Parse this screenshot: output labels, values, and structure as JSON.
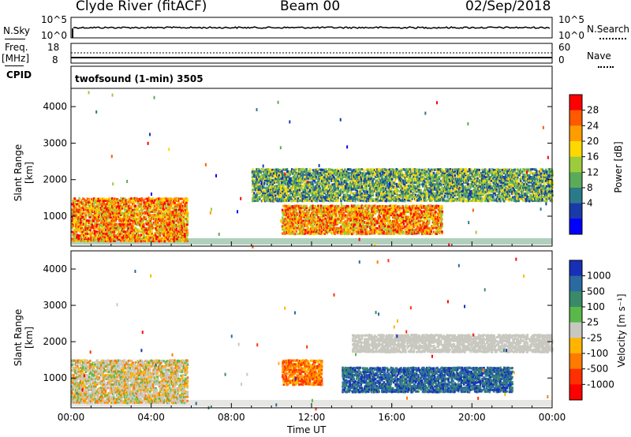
{
  "header": {
    "title": "Clyde River (fitACF)",
    "beam": "Beam 00",
    "date": "02/Sep/2018"
  },
  "strip1": {
    "left_label": "N.Sky",
    "right_label": "N.Search",
    "left_ticks": [
      "10^5",
      "10^0"
    ],
    "right_ticks": [
      "10^5",
      "10^0"
    ]
  },
  "strip2": {
    "left_label_top": "Freq.",
    "left_label_unit": "[MHz]",
    "left_label_cpid": "CPID",
    "right_label": "Nave",
    "left_ticks": [
      "18",
      "8"
    ],
    "right_ticks": [
      "60",
      "0"
    ]
  },
  "cpid_text": "twofsound (1-min) 3505",
  "axes": {
    "ylabel": "Slant Range [km]",
    "yticks": [
      "4000",
      "3000",
      "2000",
      "1000"
    ],
    "xticks": [
      "00:00",
      "04:00",
      "08:00",
      "12:00",
      "16:00",
      "20:00",
      "00:00"
    ],
    "xlabel": "Time UT"
  },
  "power_scale": {
    "label": "Power [dB]",
    "ticks": [
      "28",
      "24",
      "20",
      "16",
      "12",
      "8",
      "4"
    ],
    "colors": [
      "#ff0000",
      "#ff5a00",
      "#ff9c00",
      "#ffd800",
      "#9ccc3c",
      "#5aaa5a",
      "#2a7a8a",
      "#1a3aaa",
      "#0000ff"
    ]
  },
  "velocity_scale": {
    "label": "Velocity [m s⁻¹]",
    "ticks": [
      "1000",
      "500",
      "100",
      "25",
      "-25",
      "-100",
      "-500",
      "-1000"
    ],
    "colors": [
      "#1830b8",
      "#2a6aa0",
      "#3a8a6a",
      "#5ab84a",
      "#c8c8c0",
      "#ffb400",
      "#ff7a00",
      "#ff3000",
      "#ff0000"
    ]
  },
  "chart_data": {
    "type": "heatmap",
    "x_range": [
      "00:00",
      "24:00"
    ],
    "y_range_km": [
      180,
      4500
    ],
    "power_panel_features": [
      {
        "t_start": 0.0,
        "t_end": 5.8,
        "r_min": 300,
        "r_max": 1500,
        "level": "high"
      },
      {
        "t_start": 10.5,
        "t_end": 18.5,
        "r_min": 500,
        "r_max": 1300,
        "level": "high"
      },
      {
        "t_start": 9.0,
        "t_end": 24.0,
        "r_min": 1400,
        "r_max": 2300,
        "level": "medium"
      }
    ],
    "velocity_panel_features": [
      {
        "t_start": 0.0,
        "t_end": 5.8,
        "r_min": 300,
        "r_max": 1500,
        "sign": "mixed"
      },
      {
        "t_start": 10.5,
        "t_end": 12.5,
        "r_min": 800,
        "r_max": 1500,
        "sign": "away"
      },
      {
        "t_start": 13.5,
        "t_end": 22.0,
        "r_min": 600,
        "r_max": 1300,
        "sign": "toward"
      },
      {
        "t_start": 14.0,
        "t_end": 24.0,
        "r_min": 1700,
        "r_max": 2200,
        "sign": "near-zero"
      }
    ]
  }
}
